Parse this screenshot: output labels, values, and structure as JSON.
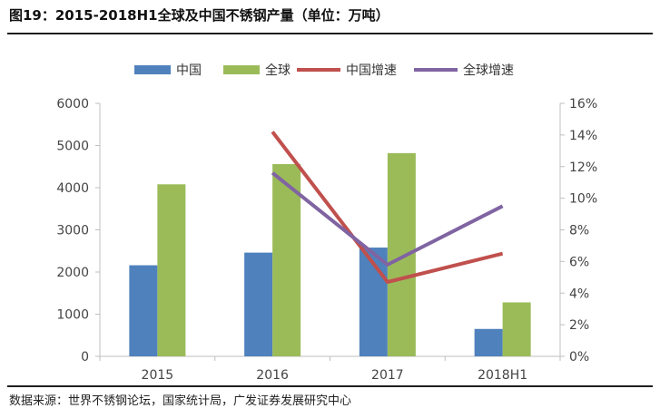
{
  "title": "图19：2015-2018H1全球及中国不锈钢产量（单位：万吨）",
  "source": "数据来源：世界不锈钢论坛，国家统计局，广发证券发展研究中心",
  "colors": {
    "china": "#4f81bd",
    "global": "#9bbb59",
    "china_growth": "#c0504d",
    "global_growth": "#8064a2",
    "axis": "#bfbfbf"
  },
  "chart_data": {
    "type": "bar",
    "categories": [
      "2015",
      "2016",
      "2017",
      "2018H1"
    ],
    "series": [
      {
        "name": "中国",
        "type": "bar",
        "axis": "left",
        "values": [
          2160,
          2460,
          2580,
          650
        ]
      },
      {
        "name": "全球",
        "type": "bar",
        "axis": "left",
        "values": [
          4080,
          4560,
          4820,
          1280
        ]
      },
      {
        "name": "中国增速",
        "type": "line",
        "axis": "right",
        "values": [
          null,
          14.2,
          4.7,
          6.5
        ]
      },
      {
        "name": "全球增速",
        "type": "line",
        "axis": "right",
        "values": [
          null,
          11.6,
          5.8,
          9.5
        ]
      }
    ],
    "y_left": {
      "min": 0,
      "max": 6000,
      "ticks": [
        "0",
        "1000",
        "2000",
        "3000",
        "4000",
        "5000",
        "6000"
      ]
    },
    "y_right": {
      "min": 0,
      "max": 16,
      "ticks": [
        "0%",
        "2%",
        "4%",
        "6%",
        "8%",
        "10%",
        "12%",
        "14%",
        "16%"
      ]
    },
    "legend_position": "top",
    "grid": false
  }
}
